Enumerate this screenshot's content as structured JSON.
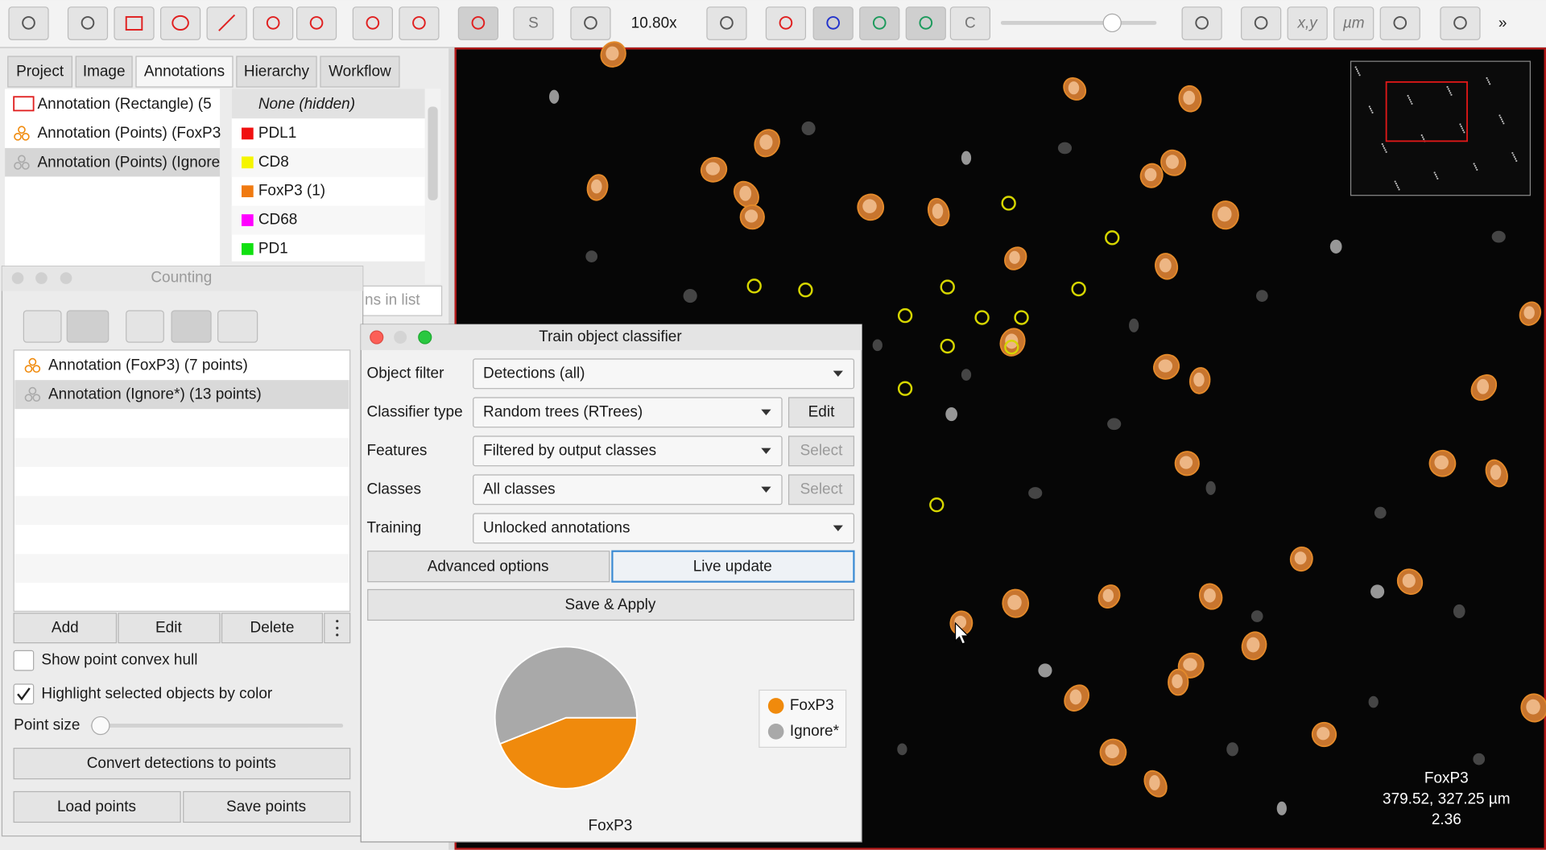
{
  "toolbar": {
    "zoom": "10.80x",
    "s_button": "S",
    "c_button": "C",
    "xy_button": "x,y",
    "um_button": "µm"
  },
  "left_panel": {
    "tabs": [
      "Project",
      "Image",
      "Annotations",
      "Hierarchy",
      "Workflow"
    ],
    "annotations": [
      "Annotation (Rectangle) (5",
      "Annotation (Points) (FoxP3",
      "Annotation (Points) (Ignore"
    ],
    "classes": [
      "None (hidden)",
      "PDL1",
      "CD8",
      "FoxP3 (1)",
      "CD68",
      "PD1"
    ],
    "filter_placeholder": "ns in list"
  },
  "counting": {
    "title": "Counting",
    "items": [
      "Annotation (FoxP3) (7 points)",
      "Annotation (Ignore*) (13 points)"
    ],
    "add": "Add",
    "edit": "Edit",
    "delete": "Delete",
    "show_hull": "Show point convex hull",
    "highlight": "Highlight selected objects by color",
    "point_size": "Point size",
    "convert": "Convert detections to points",
    "load": "Load points",
    "save": "Save points"
  },
  "classifier": {
    "title": "Train object classifier",
    "rows": [
      {
        "label": "Object filter",
        "value": "Detections (all)"
      },
      {
        "label": "Classifier type",
        "value": "Random trees (RTrees)",
        "button": "Edit"
      },
      {
        "label": "Features",
        "value": "Filtered by output classes",
        "button": "Select"
      },
      {
        "label": "Classes",
        "value": "All classes",
        "button": "Select"
      },
      {
        "label": "Training",
        "value": "Unlocked annotations"
      }
    ],
    "advanced": "Advanced options",
    "live": "Live update",
    "save_apply": "Save & Apply",
    "pie": {
      "type": "pie",
      "title": "FoxP3",
      "categories": [
        "FoxP3",
        "Ignore*"
      ],
      "values": [
        44,
        56
      ],
      "colors": [
        "#f08a0c",
        "#a9a9a9"
      ]
    }
  },
  "viewer": {
    "class_label": "FoxP3",
    "coords": "379.52, 327.25 µm",
    "value": "2.36"
  }
}
